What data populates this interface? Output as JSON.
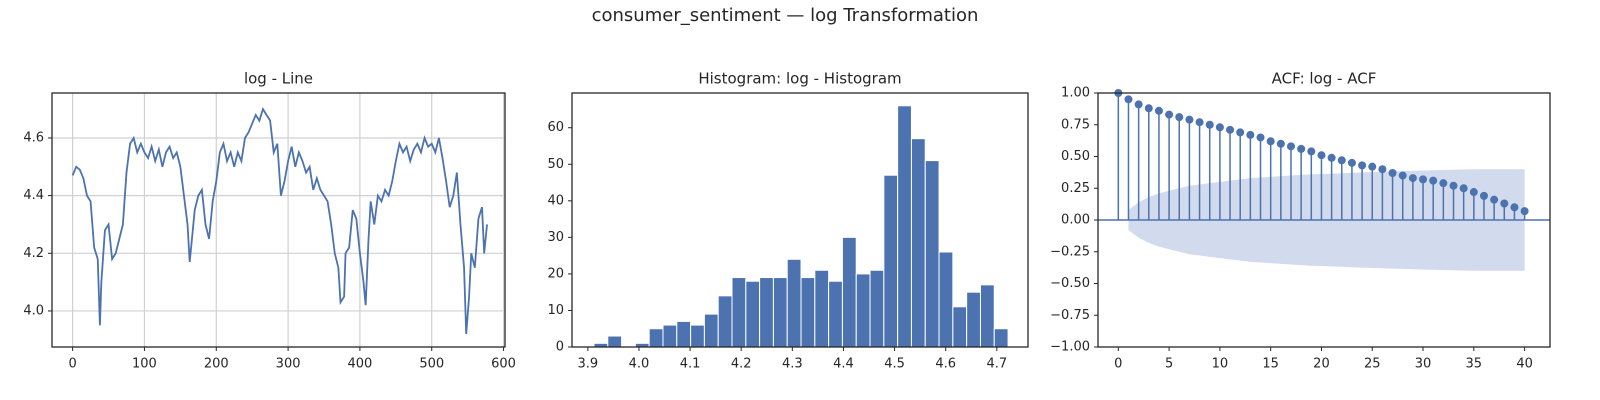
{
  "title": "consumer_sentiment — log Transformation",
  "chart_data": [
    {
      "type": "line",
      "title": "log - Line",
      "color": "#4c72b0",
      "grid": true,
      "x": [
        0,
        5,
        10,
        15,
        20,
        25,
        30,
        35,
        38,
        40,
        45,
        50,
        55,
        60,
        65,
        70,
        75,
        80,
        85,
        90,
        95,
        100,
        105,
        110,
        115,
        120,
        125,
        130,
        135,
        140,
        145,
        150,
        155,
        160,
        163,
        165,
        170,
        175,
        180,
        185,
        190,
        195,
        200,
        205,
        210,
        215,
        220,
        225,
        230,
        235,
        240,
        245,
        250,
        255,
        260,
        265,
        270,
        275,
        280,
        285,
        290,
        295,
        300,
        305,
        310,
        315,
        320,
        325,
        330,
        335,
        340,
        345,
        350,
        355,
        360,
        365,
        370,
        373,
        378,
        380,
        385,
        390,
        395,
        400,
        405,
        408,
        412,
        415,
        420,
        425,
        430,
        435,
        440,
        445,
        450,
        455,
        460,
        465,
        470,
        475,
        480,
        485,
        490,
        495,
        500,
        505,
        510,
        515,
        520,
        525,
        530,
        535,
        540,
        545,
        548,
        552,
        555,
        560,
        565,
        570,
        573,
        577
      ],
      "values": [
        4.47,
        4.5,
        4.49,
        4.46,
        4.4,
        4.38,
        4.22,
        4.18,
        3.95,
        4.1,
        4.28,
        4.3,
        4.18,
        4.2,
        4.25,
        4.3,
        4.48,
        4.58,
        4.6,
        4.55,
        4.58,
        4.55,
        4.53,
        4.57,
        4.52,
        4.56,
        4.5,
        4.55,
        4.57,
        4.53,
        4.55,
        4.5,
        4.4,
        4.3,
        4.17,
        4.22,
        4.35,
        4.4,
        4.42,
        4.3,
        4.25,
        4.38,
        4.45,
        4.55,
        4.58,
        4.52,
        4.55,
        4.5,
        4.55,
        4.52,
        4.6,
        4.62,
        4.65,
        4.68,
        4.66,
        4.7,
        4.68,
        4.66,
        4.55,
        4.58,
        4.4,
        4.45,
        4.52,
        4.57,
        4.5,
        4.55,
        4.52,
        4.48,
        4.5,
        4.42,
        4.46,
        4.42,
        4.4,
        4.38,
        4.3,
        4.2,
        4.15,
        4.03,
        4.05,
        4.2,
        4.22,
        4.35,
        4.32,
        4.2,
        4.1,
        4.02,
        4.25,
        4.38,
        4.3,
        4.4,
        4.38,
        4.42,
        4.4,
        4.45,
        4.52,
        4.58,
        4.55,
        4.57,
        4.52,
        4.56,
        4.58,
        4.55,
        4.6,
        4.57,
        4.58,
        4.55,
        4.6,
        4.53,
        4.45,
        4.36,
        4.4,
        4.48,
        4.3,
        4.15,
        3.92,
        4.05,
        4.2,
        4.15,
        4.32,
        4.36,
        4.2,
        4.3
      ],
      "xlim": [
        -28.7,
        602
      ],
      "xticks": [
        0,
        100,
        200,
        300,
        400,
        500,
        600
      ],
      "ylim": [
        3.875,
        4.756
      ],
      "yticks": [
        {
          "value": 4.0,
          "label": "4.0"
        },
        4.2,
        4.4,
        4.6
      ]
    },
    {
      "type": "histogram",
      "title": "Histogram: log - Histogram",
      "color": "#4c72b0",
      "grid": false,
      "bins": [
        3.912,
        3.939,
        3.966,
        3.993,
        4.02,
        4.047,
        4.074,
        4.101,
        4.128,
        4.155,
        4.182,
        4.209,
        4.236,
        4.263,
        4.29,
        4.317,
        4.344,
        4.371,
        4.398,
        4.425,
        4.452,
        4.479,
        4.506,
        4.533,
        4.56,
        4.587,
        4.614,
        4.641,
        4.668,
        4.695,
        4.722
      ],
      "values": [
        1,
        3,
        0,
        1,
        5,
        6,
        7,
        6,
        9,
        14,
        19,
        18,
        19,
        19,
        24,
        19,
        21,
        18,
        30,
        20,
        21,
        47,
        66,
        57,
        51,
        26,
        11,
        15,
        17,
        5
      ],
      "xlim": [
        3.869,
        4.761
      ],
      "xticks": [
        3.9,
        {
          "value": 4.0,
          "label": "4.0"
        },
        4.1,
        4.2,
        4.3,
        4.4,
        4.5,
        4.6,
        4.7
      ],
      "ylim": [
        0,
        69.5
      ],
      "yticks": [
        0,
        10,
        20,
        30,
        40,
        50,
        60
      ]
    },
    {
      "type": "acf",
      "title": "ACF: log - ACF",
      "color": "#4c72b0",
      "band_color": "#c6d2e8",
      "grid": false,
      "x": [
        0,
        1,
        2,
        3,
        4,
        5,
        6,
        7,
        8,
        9,
        10,
        11,
        12,
        13,
        14,
        15,
        16,
        17,
        18,
        19,
        20,
        21,
        22,
        23,
        24,
        25,
        26,
        27,
        28,
        29,
        30,
        31,
        32,
        33,
        34,
        35,
        36,
        37,
        38,
        39,
        40
      ],
      "values": [
        1.0,
        0.95,
        0.91,
        0.88,
        0.86,
        0.83,
        0.81,
        0.79,
        0.77,
        0.75,
        0.73,
        0.71,
        0.69,
        0.67,
        0.65,
        0.62,
        0.6,
        0.58,
        0.56,
        0.54,
        0.51,
        0.49,
        0.47,
        0.45,
        0.43,
        0.42,
        0.4,
        0.37,
        0.35,
        0.33,
        0.32,
        0.31,
        0.29,
        0.27,
        0.25,
        0.22,
        0.19,
        0.16,
        0.13,
        0.1,
        0.07
      ],
      "band": [
        null,
        0.08,
        0.14,
        0.18,
        0.21,
        0.23,
        0.25,
        0.27,
        0.28,
        0.29,
        0.3,
        0.31,
        0.32,
        0.33,
        0.335,
        0.34,
        0.345,
        0.35,
        0.355,
        0.36,
        0.362,
        0.365,
        0.368,
        0.372,
        0.375,
        0.378,
        0.38,
        0.383,
        0.385,
        0.388,
        0.39,
        0.392,
        0.394,
        0.396,
        0.398,
        0.4,
        0.4,
        0.4,
        0.4,
        0.4,
        0.4
      ],
      "xlim": [
        -2,
        42.5
      ],
      "xticks": [
        0,
        5,
        10,
        15,
        20,
        25,
        30,
        35,
        40
      ],
      "ylim": [
        -1,
        1
      ],
      "yticks": [
        {
          "value": -1,
          "label": "−1.00"
        },
        {
          "value": -0.75,
          "label": "−0.75"
        },
        {
          "value": -0.5,
          "label": "−0.50"
        },
        {
          "value": -0.25,
          "label": "−0.25"
        },
        {
          "value": 0,
          "label": "0.00"
        },
        {
          "value": 0.25,
          "label": "0.25"
        },
        {
          "value": 0.5,
          "label": "0.50"
        },
        {
          "value": 0.75,
          "label": "0.75"
        },
        {
          "value": 1,
          "label": "1.00"
        }
      ]
    }
  ]
}
